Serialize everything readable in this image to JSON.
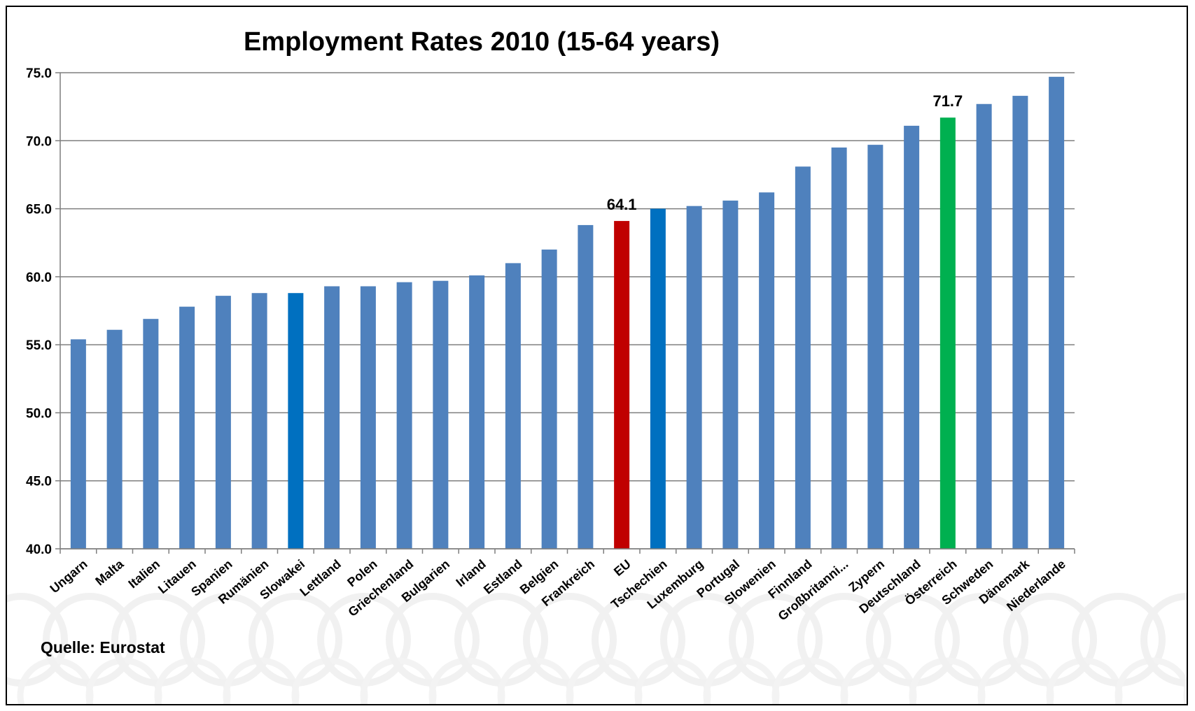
{
  "chart_data": {
    "type": "bar",
    "title": "Employment Rates 2010 (15-64 years)",
    "xlabel": "",
    "ylabel": "",
    "ylim": [
      40,
      75
    ],
    "yticks": [
      "40.0",
      "45.0",
      "50.0",
      "55.0",
      "60.0",
      "65.0",
      "70.0",
      "75.0"
    ],
    "grid": "horizontal",
    "categories": [
      "Ungarn",
      "Malta",
      "Italien",
      "Litauen",
      "Spanien",
      "Rumänien",
      "Slowakei",
      "Lettland",
      "Polen",
      "Griechenland",
      "Bulgarien",
      "Irland",
      "Estland",
      "Belgien",
      "Frankreich",
      "EU",
      "Tschechien",
      "Luxemburg",
      "Portugal",
      "Slowenien",
      "Finnland",
      "Großbritanni...",
      "Zypern",
      "Deutschland",
      "Österreich",
      "Schweden",
      "Dänemark",
      "Niederlande"
    ],
    "values": [
      55.4,
      56.1,
      56.9,
      57.8,
      58.6,
      58.8,
      58.8,
      59.3,
      59.3,
      59.6,
      59.7,
      60.1,
      61.0,
      62.0,
      63.8,
      64.1,
      65.0,
      65.2,
      65.6,
      66.2,
      68.1,
      69.5,
      69.7,
      71.1,
      71.7,
      72.7,
      73.3,
      74.7
    ],
    "colors": [
      "#4f81bd",
      "#4f81bd",
      "#4f81bd",
      "#4f81bd",
      "#4f81bd",
      "#4f81bd",
      "#0070c0",
      "#4f81bd",
      "#4f81bd",
      "#4f81bd",
      "#4f81bd",
      "#4f81bd",
      "#4f81bd",
      "#4f81bd",
      "#4f81bd",
      "#c00000",
      "#0070c0",
      "#4f81bd",
      "#4f81bd",
      "#4f81bd",
      "#4f81bd",
      "#4f81bd",
      "#4f81bd",
      "#4f81bd",
      "#00b050",
      "#4f81bd",
      "#4f81bd",
      "#4f81bd"
    ],
    "data_labels": [
      {
        "category": "EU",
        "text": "64.1"
      },
      {
        "category": "Österreich",
        "text": "71.7"
      }
    ],
    "source": "Quelle: Eurostat"
  }
}
